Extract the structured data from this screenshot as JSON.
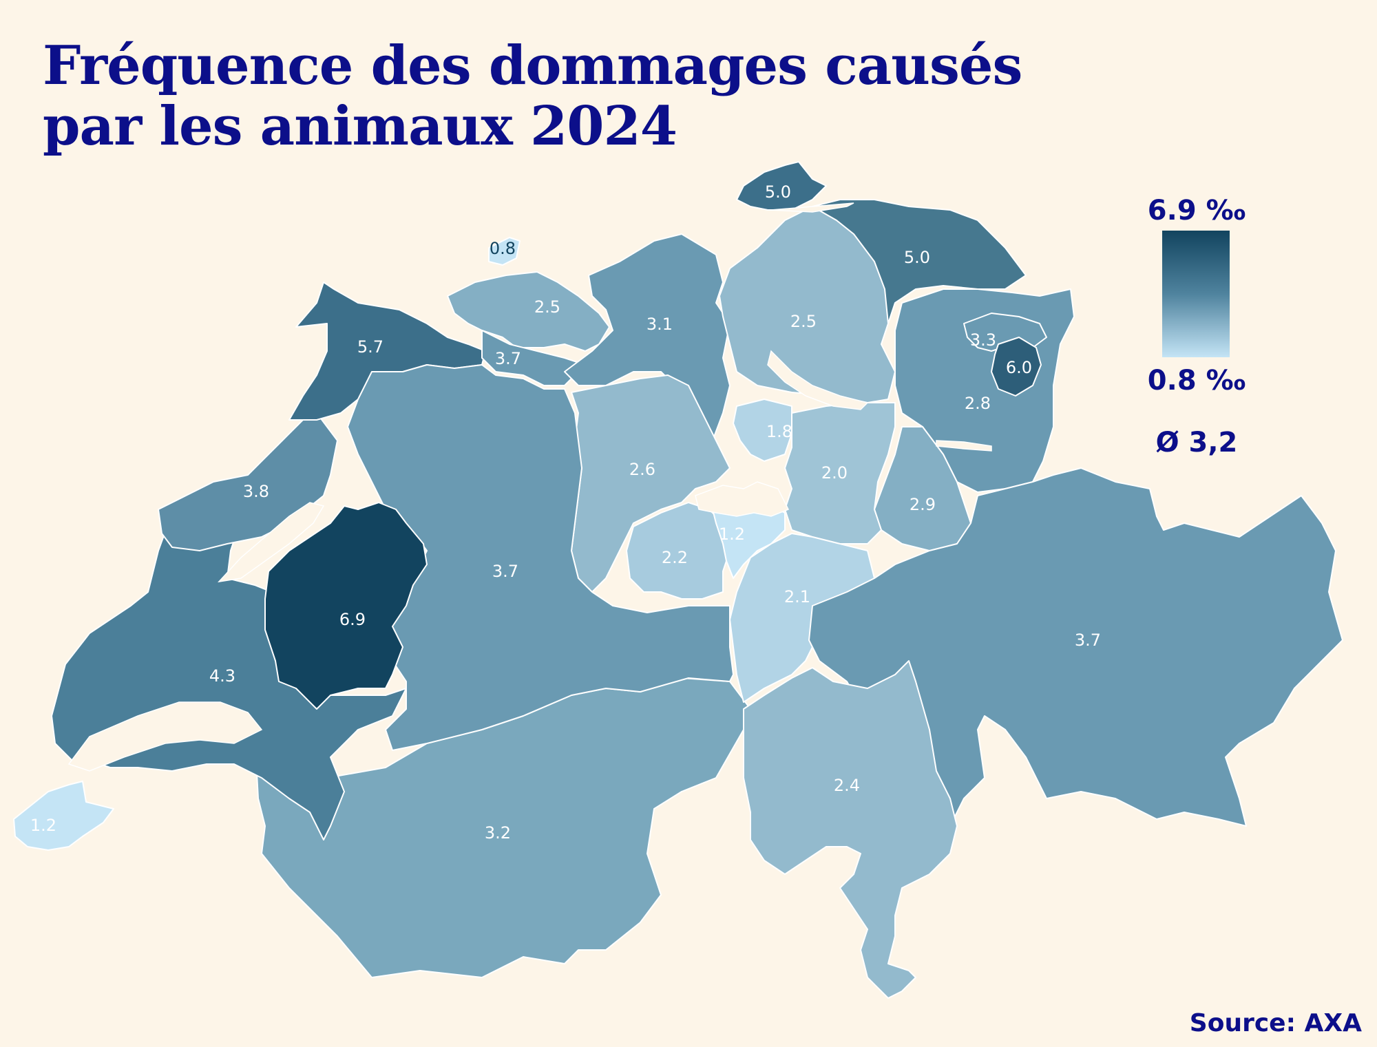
{
  "title_line1": "Fréquence des dommages causés",
  "title_line2": "par les animaux 2024",
  "legend": {
    "max": "6.9 ‰",
    "min": "0.8 ‰",
    "average": "Ø 3,2"
  },
  "source": "Source: AXA",
  "colors": {
    "background": "#fdf5e8",
    "title": "#0c0f8a",
    "scale_max": "#12445f",
    "scale_mid": "#4f839e",
    "scale_min": "#c4e4f5"
  },
  "regions": [
    {
      "id": "schaffhausen",
      "value": "5.0"
    },
    {
      "id": "basel-stadt",
      "value": "0.8"
    },
    {
      "id": "thurgau",
      "value": "5.0"
    },
    {
      "id": "basel-landschaft",
      "value": "2.5"
    },
    {
      "id": "aargau",
      "value": "3.1"
    },
    {
      "id": "zurich",
      "value": "2.5"
    },
    {
      "id": "jura",
      "value": "5.7"
    },
    {
      "id": "solothurn",
      "value": "3.7"
    },
    {
      "id": "appenzell-ausserrhoden",
      "value": "3.3"
    },
    {
      "id": "appenzell-innerrhoden",
      "value": "6.0"
    },
    {
      "id": "st-gallen",
      "value": "2.8"
    },
    {
      "id": "zug",
      "value": "1.8"
    },
    {
      "id": "schwyz",
      "value": "2.0"
    },
    {
      "id": "lucerne",
      "value": "2.6"
    },
    {
      "id": "glarus",
      "value": "2.9"
    },
    {
      "id": "neuchatel",
      "value": "3.8"
    },
    {
      "id": "nidwalden",
      "value": "1.2"
    },
    {
      "id": "obwalden",
      "value": "2.2"
    },
    {
      "id": "bern",
      "value": "3.7"
    },
    {
      "id": "uri",
      "value": "2.1"
    },
    {
      "id": "fribourg",
      "value": "6.9"
    },
    {
      "id": "graubunden",
      "value": "3.7"
    },
    {
      "id": "vaud",
      "value": "4.3"
    },
    {
      "id": "ticino",
      "value": "2.4"
    },
    {
      "id": "geneva",
      "value": "1.2"
    },
    {
      "id": "valais",
      "value": "3.2"
    }
  ]
}
